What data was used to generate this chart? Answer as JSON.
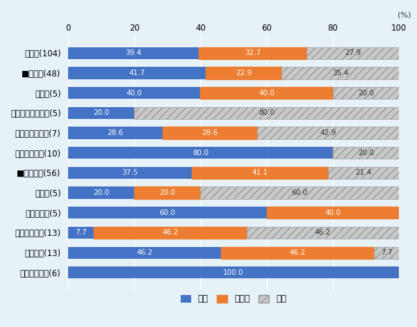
{
  "categories": [
    "全業種(104)",
    "■製造業(48)",
    "食料品(5)",
    "プラスチック製品(5)",
    "鉄・非鉄・金属(7)",
    "自動車等部品(10)",
    "■非製造業(56)",
    "運輸業(5)",
    "情報通信業(5)",
    "商社・卸売業(13)",
    "販売会社(13)",
    "旅行・娯楽業(6)"
  ],
  "kaizen": [
    39.4,
    41.7,
    40.0,
    20.0,
    28.6,
    80.0,
    37.5,
    20.0,
    60.0,
    7.7,
    46.2,
    100.0
  ],
  "yokobai": [
    32.7,
    22.9,
    40.0,
    0.0,
    28.6,
    0.0,
    41.1,
    20.0,
    40.0,
    46.2,
    46.2,
    0.0
  ],
  "akka": [
    27.9,
    35.4,
    20.0,
    80.0,
    42.9,
    20.0,
    21.4,
    60.0,
    0.0,
    46.2,
    7.7,
    0.0
  ],
  "color_kaizen": "#4472C4",
  "color_yokobai": "#ED7D31",
  "color_akka": "#C8C8C8",
  "background_color": "#E6F2F8",
  "title_percent": "(%)",
  "figsize": [
    6.0,
    4.7
  ],
  "dpi": 100,
  "bar_height": 0.6,
  "label_fontsize": 7.5,
  "tick_fontsize": 8.5,
  "legend_fontsize": 9.0
}
